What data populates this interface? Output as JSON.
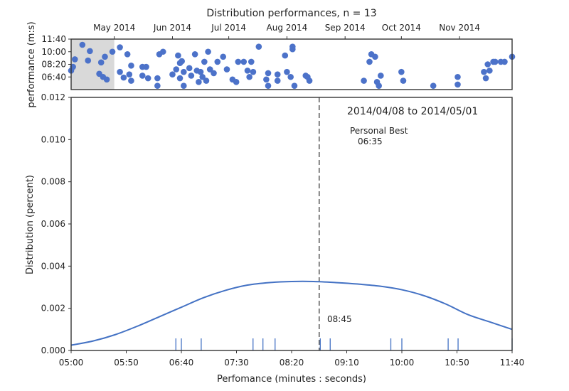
{
  "chart_data": [
    {
      "type": "scatter",
      "title": "Distribution performances, n = 13",
      "xlabel": "",
      "ylabel": "performance (m:s)",
      "x_ticks": [
        "May 2014",
        "Jun 2014",
        "Jul 2014",
        "Aug 2014",
        "Sep 2014",
        "Oct 2014",
        "Nov 2014"
      ],
      "y_ticks": [
        "06:40",
        "08:20",
        "10:00",
        "11:40"
      ],
      "xlim": [
        "2014-04-08",
        "2014-11-29"
      ],
      "ylim": [
        "05:00",
        "11:40"
      ],
      "highlight_range": [
        "2014-04-08",
        "2014-05-01"
      ],
      "marker_color": "#4c72c9",
      "points": [
        {
          "x": "2014-04-08",
          "y": "07:30"
        },
        {
          "x": "2014-04-09",
          "y": "08:00"
        },
        {
          "x": "2014-04-10",
          "y": "09:00"
        },
        {
          "x": "2014-04-14",
          "y": "10:55"
        },
        {
          "x": "2014-04-17",
          "y": "08:50"
        },
        {
          "x": "2014-04-18",
          "y": "10:05"
        },
        {
          "x": "2014-04-23",
          "y": "07:05"
        },
        {
          "x": "2014-04-24",
          "y": "08:35"
        },
        {
          "x": "2014-04-25",
          "y": "06:40"
        },
        {
          "x": "2014-04-26",
          "y": "09:20"
        },
        {
          "x": "2014-04-27",
          "y": "06:20"
        },
        {
          "x": "2014-04-30",
          "y": "10:00"
        },
        {
          "x": "2014-05-04",
          "y": "10:35"
        },
        {
          "x": "2014-05-04",
          "y": "07:20"
        },
        {
          "x": "2014-05-06",
          "y": "06:35"
        },
        {
          "x": "2014-05-08",
          "y": "09:40"
        },
        {
          "x": "2014-05-09",
          "y": "07:00"
        },
        {
          "x": "2014-05-10",
          "y": "08:10"
        },
        {
          "x": "2014-05-10",
          "y": "06:10"
        },
        {
          "x": "2014-05-16",
          "y": "08:00"
        },
        {
          "x": "2014-05-16",
          "y": "06:50"
        },
        {
          "x": "2014-05-18",
          "y": "08:00"
        },
        {
          "x": "2014-05-19",
          "y": "06:30"
        },
        {
          "x": "2014-05-24",
          "y": "06:30"
        },
        {
          "x": "2014-05-24",
          "y": "05:30"
        },
        {
          "x": "2014-05-25",
          "y": "09:40"
        },
        {
          "x": "2014-05-27",
          "y": "10:00"
        },
        {
          "x": "2014-06-01",
          "y": "07:00"
        },
        {
          "x": "2014-06-03",
          "y": "07:40"
        },
        {
          "x": "2014-06-04",
          "y": "09:30"
        },
        {
          "x": "2014-06-05",
          "y": "08:30"
        },
        {
          "x": "2014-06-05",
          "y": "06:30"
        },
        {
          "x": "2014-06-06",
          "y": "08:45"
        },
        {
          "x": "2014-06-07",
          "y": "07:20"
        },
        {
          "x": "2014-06-07",
          "y": "05:30"
        },
        {
          "x": "2014-06-10",
          "y": "07:50"
        },
        {
          "x": "2014-06-11",
          "y": "06:50"
        },
        {
          "x": "2014-06-13",
          "y": "09:40"
        },
        {
          "x": "2014-06-14",
          "y": "07:30"
        },
        {
          "x": "2014-06-15",
          "y": "06:00"
        },
        {
          "x": "2014-06-16",
          "y": "07:20"
        },
        {
          "x": "2014-06-17",
          "y": "06:40"
        },
        {
          "x": "2014-06-18",
          "y": "08:40"
        },
        {
          "x": "2014-06-19",
          "y": "06:10"
        },
        {
          "x": "2014-06-20",
          "y": "10:00"
        },
        {
          "x": "2014-06-21",
          "y": "07:40"
        },
        {
          "x": "2014-06-23",
          "y": "07:10"
        },
        {
          "x": "2014-06-25",
          "y": "08:40"
        },
        {
          "x": "2014-06-28",
          "y": "09:20"
        },
        {
          "x": "2014-06-30",
          "y": "07:40"
        },
        {
          "x": "2014-07-03",
          "y": "06:20"
        },
        {
          "x": "2014-07-05",
          "y": "06:00"
        },
        {
          "x": "2014-07-06",
          "y": "08:40"
        },
        {
          "x": "2014-07-09",
          "y": "08:40"
        },
        {
          "x": "2014-07-11",
          "y": "07:30"
        },
        {
          "x": "2014-07-12",
          "y": "06:40"
        },
        {
          "x": "2014-07-13",
          "y": "08:40"
        },
        {
          "x": "2014-07-14",
          "y": "07:20"
        },
        {
          "x": "2014-07-17",
          "y": "10:40"
        },
        {
          "x": "2014-07-21",
          "y": "06:20"
        },
        {
          "x": "2014-07-22",
          "y": "07:10"
        },
        {
          "x": "2014-07-22",
          "y": "05:30"
        },
        {
          "x": "2014-07-27",
          "y": "07:00"
        },
        {
          "x": "2014-07-27",
          "y": "06:10"
        },
        {
          "x": "2014-07-31",
          "y": "09:30"
        },
        {
          "x": "2014-08-01",
          "y": "07:20"
        },
        {
          "x": "2014-08-03",
          "y": "06:40"
        },
        {
          "x": "2014-08-04",
          "y": "10:20"
        },
        {
          "x": "2014-08-04",
          "y": "10:40"
        },
        {
          "x": "2014-08-05",
          "y": "05:30"
        },
        {
          "x": "2014-08-11",
          "y": "06:50"
        },
        {
          "x": "2014-08-12",
          "y": "06:40"
        },
        {
          "x": "2014-08-13",
          "y": "06:10"
        },
        {
          "x": "2014-09-11",
          "y": "06:10"
        },
        {
          "x": "2014-09-14",
          "y": "08:40"
        },
        {
          "x": "2014-09-15",
          "y": "09:40"
        },
        {
          "x": "2014-09-17",
          "y": "09:20"
        },
        {
          "x": "2014-09-18",
          "y": "06:00"
        },
        {
          "x": "2014-09-19",
          "y": "05:30"
        },
        {
          "x": "2014-09-20",
          "y": "06:50"
        },
        {
          "x": "2014-10-01",
          "y": "07:20"
        },
        {
          "x": "2014-10-02",
          "y": "06:10"
        },
        {
          "x": "2014-10-18",
          "y": "05:30"
        },
        {
          "x": "2014-10-31",
          "y": "06:40"
        },
        {
          "x": "2014-10-31",
          "y": "05:40"
        },
        {
          "x": "2014-11-14",
          "y": "07:20"
        },
        {
          "x": "2014-11-15",
          "y": "06:30"
        },
        {
          "x": "2014-11-16",
          "y": "08:20"
        },
        {
          "x": "2014-11-17",
          "y": "07:30"
        },
        {
          "x": "2014-11-19",
          "y": "08:40"
        },
        {
          "x": "2014-11-20",
          "y": "08:40"
        },
        {
          "x": "2014-11-23",
          "y": "08:40"
        },
        {
          "x": "2014-11-25",
          "y": "08:40"
        },
        {
          "x": "2014-11-29",
          "y": "09:20"
        }
      ]
    },
    {
      "type": "line",
      "title": "",
      "xlabel": "Perfomance (minutes : seconds)",
      "ylabel": "Distribution (percent)",
      "xlim": [
        "05:00",
        "11:40"
      ],
      "ylim": [
        0,
        0.012
      ],
      "x_ticks": [
        "05:00",
        "05:50",
        "06:40",
        "07:30",
        "08:20",
        "09:10",
        "10:00",
        "10:50",
        "11:40"
      ],
      "y_ticks": [
        "0.000",
        "0.002",
        "0.004",
        "0.006",
        "0.008",
        "0.010",
        "0.012"
      ],
      "range_label": "2014/04/08 to 2014/05/01",
      "personal_best_label": "Personal Best",
      "personal_best_value": "06:35",
      "vline_label": "08:45",
      "vline_x": "08:45",
      "line_color": "#4472c4",
      "curve": [
        {
          "x": "05:00",
          "y": 0.00025
        },
        {
          "x": "05:20",
          "y": 0.00045
        },
        {
          "x": "05:40",
          "y": 0.00075
        },
        {
          "x": "06:00",
          "y": 0.00115
        },
        {
          "x": "06:20",
          "y": 0.0016
        },
        {
          "x": "06:40",
          "y": 0.00205
        },
        {
          "x": "07:00",
          "y": 0.0025
        },
        {
          "x": "07:20",
          "y": 0.00285
        },
        {
          "x": "07:40",
          "y": 0.0031
        },
        {
          "x": "08:00",
          "y": 0.00322
        },
        {
          "x": "08:20",
          "y": 0.00327
        },
        {
          "x": "08:40",
          "y": 0.00327
        },
        {
          "x": "09:00",
          "y": 0.00322
        },
        {
          "x": "09:20",
          "y": 0.00315
        },
        {
          "x": "09:40",
          "y": 0.00305
        },
        {
          "x": "10:00",
          "y": 0.00288
        },
        {
          "x": "10:20",
          "y": 0.0026
        },
        {
          "x": "10:40",
          "y": 0.0022
        },
        {
          "x": "11:00",
          "y": 0.0017
        },
        {
          "x": "11:20",
          "y": 0.00135
        },
        {
          "x": "11:40",
          "y": 0.001
        }
      ],
      "rug": [
        "06:35",
        "06:40",
        "06:58",
        "07:45",
        "07:54",
        "08:05",
        "08:46",
        "08:55",
        "09:50",
        "10:00",
        "10:42",
        "10:51",
        "11:40"
      ]
    }
  ]
}
